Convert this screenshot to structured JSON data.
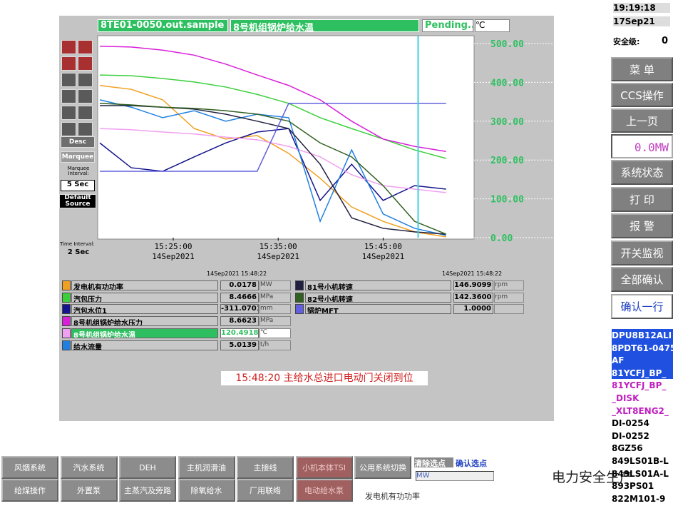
{
  "header": {
    "tag": "8TE01-0050.out.sample",
    "desc": "8号机组锅炉给水温",
    "status": "Pending...",
    "unit": "℃"
  },
  "toolbar": {
    "desc": "Desc",
    "marquee": "Marquee",
    "marquee_interval_label": "Marquee Interval:",
    "marquee_interval": "5 Sec",
    "default_source": "Default Source",
    "time_interval_label": "Time Interval:",
    "time_interval": "2 Sec"
  },
  "chart_data": {
    "type": "line",
    "x": [
      "15:18:00",
      "15:21:00",
      "15:24:00",
      "15:27:00",
      "15:30:00",
      "15:33:00",
      "15:36:00",
      "15:39:00",
      "15:42:00",
      "15:45:00",
      "15:48:00",
      "15:51:00"
    ],
    "xlim": [
      "15:17:48",
      "15:53:40"
    ],
    "xticks": [
      "15:25:00",
      "15:35:00",
      "15:45:00"
    ],
    "xtick_dates": [
      "14Sep2021",
      "14Sep2021",
      "14Sep2021"
    ],
    "ylim": [
      0,
      500
    ],
    "yticks": [
      {
        "value": 0,
        "label": "0.00"
      },
      {
        "value": 100,
        "label": "100.00"
      },
      {
        "value": 200,
        "label": "200.00"
      },
      {
        "value": 300,
        "label": "300.00"
      },
      {
        "value": 400,
        "label": "400.00"
      },
      {
        "value": 500,
        "label": "500.00"
      }
    ],
    "cursor": "15:48:20",
    "series": [
      {
        "name": "发电机有功功率",
        "color": "#f0a020",
        "values": [
          392,
          382,
          355,
          281,
          254,
          263,
          217,
          153,
          79,
          42,
          15,
          2
        ]
      },
      {
        "name": "汽包压力",
        "color": "#3ccf3c",
        "values": [
          419,
          417,
          410,
          401,
          388,
          369,
          346,
          309,
          281,
          254,
          226,
          204
        ]
      },
      {
        "name": "汽包水位1",
        "color": "#14148c",
        "values": [
          244,
          180,
          171,
          208,
          244,
          272,
          281,
          96,
          189,
          96,
          134,
          125
        ]
      },
      {
        "name": "8号机组锅炉给水压力",
        "color": "#d820d8",
        "values": [
          493,
          491,
          483,
          470,
          447,
          419,
          392,
          355,
          300,
          254,
          235,
          222
        ]
      },
      {
        "name": "8号机组锅炉给水温",
        "color": "#f0a0f0",
        "values": [
          281,
          278,
          272,
          267,
          259,
          252,
          235,
          208,
          162,
          134,
          125,
          116
        ]
      },
      {
        "name": "给水流量",
        "color": "#2080e0",
        "values": [
          355,
          336,
          309,
          327,
          300,
          318,
          309,
          42,
          226,
          61,
          24,
          6
        ]
      },
      {
        "name": "81号小机转速",
        "color": "#202040",
        "values": [
          340,
          340,
          336,
          331,
          318,
          300,
          281,
          189,
          51,
          24,
          15,
          9
        ]
      },
      {
        "name": "82号小机转速",
        "color": "#306020",
        "values": [
          346,
          342,
          336,
          333,
          327,
          318,
          300,
          244,
          208,
          134,
          42,
          9
        ]
      },
      {
        "name": "锅炉MFT",
        "color": "#6060e0",
        "values": [
          171,
          171,
          171,
          171,
          171,
          171,
          346,
          346,
          346,
          346,
          346,
          346
        ]
      }
    ]
  },
  "readout": {
    "time_left": "14Sep2021  15:48:22",
    "time_right": "14Sep2021  15:48:22",
    "rows": [
      [
        "0.0178",
        "MW"
      ],
      [
        "8.4666",
        "MPa"
      ],
      [
        "-311.0701",
        "mm"
      ],
      [
        "8.6623",
        "MPa"
      ],
      [
        "120.4918",
        "℃"
      ],
      [
        "5.0139",
        "t/h"
      ],
      [
        "146.9099",
        "rpm"
      ],
      [
        "142.3600",
        "rpm"
      ],
      [
        "1.0000",
        ""
      ]
    ]
  },
  "message": "15:48:20 主给水总进口电动门关闭到位",
  "bottom": {
    "buttons": [
      "风烟系统",
      "汽水系统",
      "DEH",
      "主机润滑油",
      "主接线",
      "小机本体TSI",
      "公用系统切换",
      "给煤操作",
      "外置泵",
      "主蒸汽及旁路",
      "除氧给水",
      "厂用联络",
      "电动给水泵"
    ],
    "clear": "清除选点",
    "confirm": "确认选点",
    "field": "MW",
    "status": "发电机有功功率"
  },
  "side": {
    "time": "19:19:18",
    "date": "17Sep21",
    "level_label": "安全级:",
    "level": "0",
    "menu": [
      "菜 单",
      "CCS操作",
      "上一页"
    ],
    "power": "0.0MW",
    "menu2": [
      "系统状态",
      "打 印",
      "报 警",
      "开关监视",
      "全部确认",
      "确认一行"
    ],
    "alarms": [
      "DPU8B12ALI",
      "8PDT61-0475",
      "AF",
      "81YCFJ_BP_",
      "81YCFJ_BP_",
      "_DISK",
      "_XLT8ENG2_",
      "DI-0254",
      "DI-0252",
      "8GZ56",
      "849LS01B-L",
      "849LS01A-L",
      "893PS01",
      "822M101-9"
    ]
  },
  "watermark": "电力安全生产"
}
